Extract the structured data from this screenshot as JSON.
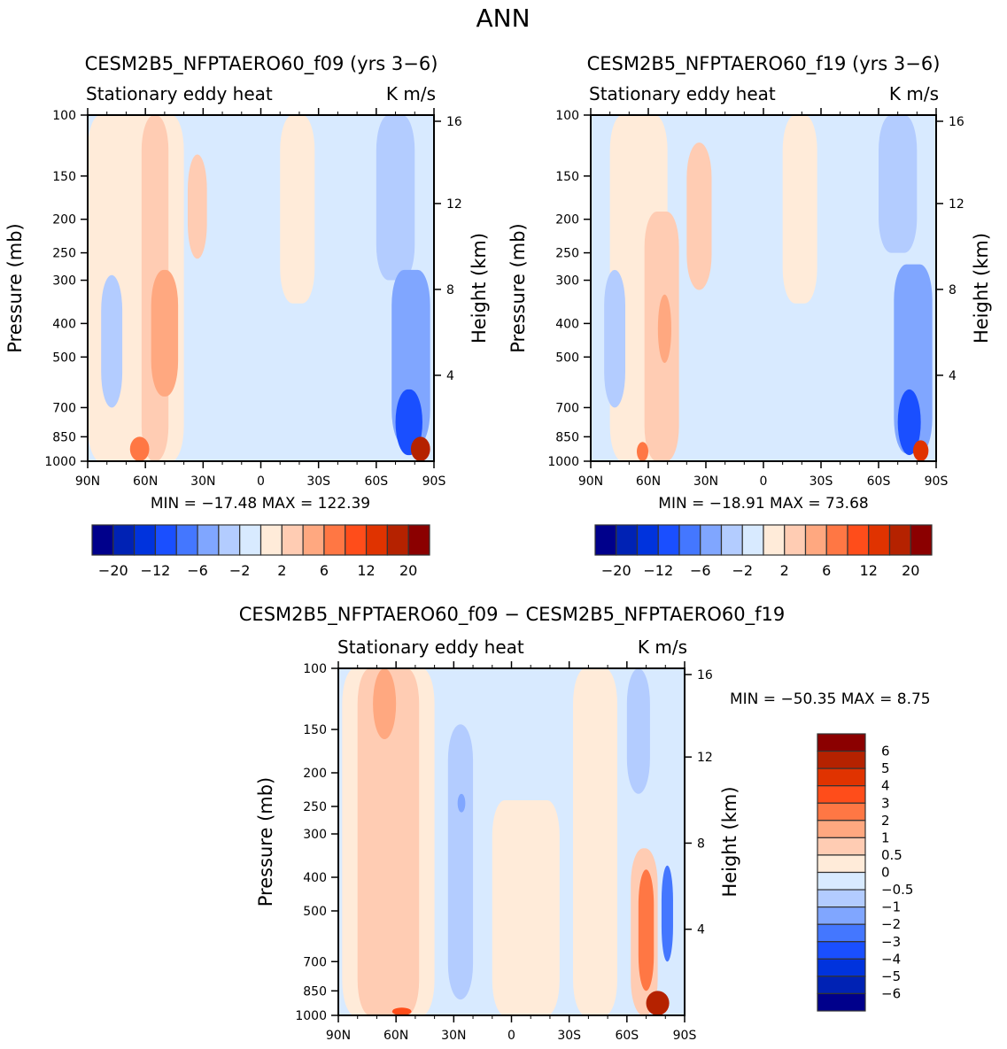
{
  "figure": {
    "title": "ANN",
    "palette": [
      "#00008B",
      "#0022B4",
      "#0033DD",
      "#1A4FFF",
      "#4477FF",
      "#80A6FF",
      "#B3CCFF",
      "#D8EAFF",
      "#FFEBD9",
      "#FFCCB3",
      "#FFA880",
      "#FF7744",
      "#FF4D1A",
      "#E03300",
      "#B52200",
      "#8B0000"
    ]
  },
  "chart_data": [
    {
      "id": "panel-f09",
      "type": "heatmap",
      "title": "CESM2B5_NFPTAERO60_f09 (yrs 3−6)",
      "left_label": "Stationary eddy heat",
      "right_label": "K m/s",
      "xlabel": "",
      "ylabel": "Pressure (mb)",
      "ylabel_right": "Height (km)",
      "x_ticks": [
        "90N",
        "60N",
        "30N",
        "0",
        "30S",
        "60S",
        "90S"
      ],
      "x_range": [
        90,
        -90
      ],
      "y_ticks": [
        100,
        150,
        200,
        250,
        300,
        400,
        500,
        700,
        850,
        1000
      ],
      "y_range_mb": [
        100,
        1000
      ],
      "y_right_ticks": [
        16,
        12,
        8,
        4
      ],
      "stats": "MIN = −17.48   MAX = 122.39",
      "min": -17.48,
      "max": 122.39,
      "levels": [
        -20,
        -16,
        -12,
        -8,
        -6,
        -4,
        -2,
        0,
        2,
        4,
        6,
        8,
        12,
        16,
        20
      ],
      "colorbar_labels": [
        "−20",
        "−12",
        "−6",
        "−2",
        "2",
        "6",
        "12",
        "20"
      ],
      "background_level": 7,
      "features": [
        {
          "lat": [
            90,
            60
          ],
          "p": [
            100,
            1000
          ],
          "level": 8,
          "note": "positive poleward band 90N-60N"
        },
        {
          "lat": [
            70,
            40
          ],
          "p": [
            100,
            1000
          ],
          "level": 8
        },
        {
          "lat": [
            62,
            48
          ],
          "p": [
            100,
            1000
          ],
          "level": 9,
          "note": "upper tilt band near 60N"
        },
        {
          "lat": [
            57,
            43
          ],
          "p": [
            280,
            650
          ],
          "level": 10,
          "note": "core ~60N-45N mid trop"
        },
        {
          "lat": [
            38,
            28
          ],
          "p": [
            130,
            260
          ],
          "level": 9,
          "note": "upper trop near 30N"
        },
        {
          "lat": [
            83,
            72
          ],
          "p": [
            290,
            700
          ],
          "level": 6,
          "note": "negative cell near 75N"
        },
        {
          "lat": [
            68,
            58
          ],
          "p": [
            850,
            1000
          ],
          "level": 11,
          "note": "surface maximum near 60N"
        },
        {
          "lat": [
            -10,
            -28
          ],
          "p": [
            100,
            350
          ],
          "level": 8
        },
        {
          "lat": [
            -60,
            -80
          ],
          "p": [
            100,
            300
          ],
          "level": 6,
          "note": "upper negative near 70S"
        },
        {
          "lat": [
            -68,
            -88
          ],
          "p": [
            280,
            900
          ],
          "level": 5
        },
        {
          "lat": [
            -70,
            -84
          ],
          "p": [
            620,
            960
          ],
          "level": 3,
          "note": "deep negative near 75S"
        },
        {
          "lat": [
            -78,
            -88
          ],
          "p": [
            850,
            1000
          ],
          "level": 14,
          "note": "Antarctic surface max"
        }
      ]
    },
    {
      "id": "panel-f19",
      "type": "heatmap",
      "title": "CESM2B5_NFPTAERO60_f19 (yrs 3−6)",
      "left_label": "Stationary eddy heat",
      "right_label": "K m/s",
      "xlabel": "",
      "ylabel": "Pressure (mb)",
      "ylabel_right": "Height (km)",
      "x_ticks": [
        "90N",
        "60N",
        "30N",
        "0",
        "30S",
        "60S",
        "90S"
      ],
      "x_range": [
        90,
        -90
      ],
      "y_ticks": [
        100,
        150,
        200,
        250,
        300,
        400,
        500,
        700,
        850,
        1000
      ],
      "y_range_mb": [
        100,
        1000
      ],
      "y_right_ticks": [
        16,
        12,
        8,
        4
      ],
      "stats": "MIN = −18.91   MAX =  73.68",
      "min": -18.91,
      "max": 73.68,
      "levels": [
        -20,
        -16,
        -12,
        -8,
        -6,
        -4,
        -2,
        0,
        2,
        4,
        6,
        8,
        12,
        16,
        20
      ],
      "colorbar_labels": [
        "−20",
        "−12",
        "−6",
        "−2",
        "2",
        "6",
        "12",
        "20"
      ],
      "background_level": 7,
      "features": [
        {
          "lat": [
            80,
            50
          ],
          "p": [
            100,
            1000
          ],
          "level": 8
        },
        {
          "lat": [
            62,
            44
          ],
          "p": [
            190,
            1000
          ],
          "level": 9
        },
        {
          "lat": [
            55,
            48
          ],
          "p": [
            330,
            520
          ],
          "level": 10
        },
        {
          "lat": [
            40,
            27
          ],
          "p": [
            120,
            320
          ],
          "level": 9
        },
        {
          "lat": [
            83,
            72
          ],
          "p": [
            280,
            700
          ],
          "level": 6
        },
        {
          "lat": [
            66,
            60
          ],
          "p": [
            880,
            1000
          ],
          "level": 11
        },
        {
          "lat": [
            -10,
            -28
          ],
          "p": [
            100,
            350
          ],
          "level": 8
        },
        {
          "lat": [
            -60,
            -80
          ],
          "p": [
            100,
            250
          ],
          "level": 6
        },
        {
          "lat": [
            -68,
            -88
          ],
          "p": [
            270,
            950
          ],
          "level": 5
        },
        {
          "lat": [
            -70,
            -82
          ],
          "p": [
            620,
            960
          ],
          "level": 3
        },
        {
          "lat": [
            -78,
            -86
          ],
          "p": [
            870,
            1000
          ],
          "level": 13
        }
      ]
    },
    {
      "id": "panel-diff",
      "type": "heatmap",
      "title": "CESM2B5_NFPTAERO60_f09 − CESM2B5_NFPTAERO60_f19",
      "left_label": "Stationary eddy heat",
      "right_label": "K m/s",
      "xlabel": "",
      "ylabel": "Pressure (mb)",
      "ylabel_right": "Height (km)",
      "x_ticks": [
        "90N",
        "60N",
        "30N",
        "0",
        "30S",
        "60S",
        "90S"
      ],
      "x_range": [
        90,
        -90
      ],
      "y_ticks": [
        100,
        150,
        200,
        250,
        300,
        400,
        500,
        700,
        850,
        1000
      ],
      "y_range_mb": [
        100,
        1000
      ],
      "y_right_ticks": [
        16,
        12,
        8,
        4
      ],
      "stats": "MIN = −50.35   MAX =    8.75",
      "min": -50.35,
      "max": 8.75,
      "levels": [
        -6,
        -5,
        -4,
        -3,
        -2,
        -1,
        -0.5,
        0,
        0.5,
        1,
        2,
        3,
        4,
        5,
        6
      ],
      "colorbar_labels": [
        "6",
        "5",
        "4",
        "3",
        "2",
        "1",
        "0.5",
        "0",
        "−0.5",
        "−1",
        "−2",
        "−3",
        "−4",
        "−5",
        "−6"
      ],
      "background_level": 7,
      "features": [
        {
          "lat": [
            88,
            40
          ],
          "p": [
            100,
            1000
          ],
          "level": 8
        },
        {
          "lat": [
            80,
            48
          ],
          "p": [
            100,
            1000
          ],
          "level": 9
        },
        {
          "lat": [
            72,
            60
          ],
          "p": [
            100,
            160
          ],
          "level": 10
        },
        {
          "lat": [
            62,
            52
          ],
          "p": [
            950,
            1000
          ],
          "level": 12
        },
        {
          "lat": [
            33,
            20
          ],
          "p": [
            145,
            900
          ],
          "level": 6
        },
        {
          "lat": [
            28,
            24
          ],
          "p": [
            230,
            260
          ],
          "level": 5
        },
        {
          "lat": [
            10,
            -25
          ],
          "p": [
            240,
            1000
          ],
          "level": 8
        },
        {
          "lat": [
            -32,
            -55
          ],
          "p": [
            100,
            1000
          ],
          "level": 8
        },
        {
          "lat": [
            -60,
            -72
          ],
          "p": [
            100,
            230
          ],
          "level": 6
        },
        {
          "lat": [
            -62,
            -76
          ],
          "p": [
            330,
            1000
          ],
          "level": 9
        },
        {
          "lat": [
            -66,
            -74
          ],
          "p": [
            380,
            850
          ],
          "level": 11
        },
        {
          "lat": [
            -78,
            -84
          ],
          "p": [
            370,
            700
          ],
          "level": 4
        },
        {
          "lat": [
            -70,
            -82
          ],
          "p": [
            850,
            1000
          ],
          "level": 14
        }
      ]
    }
  ]
}
